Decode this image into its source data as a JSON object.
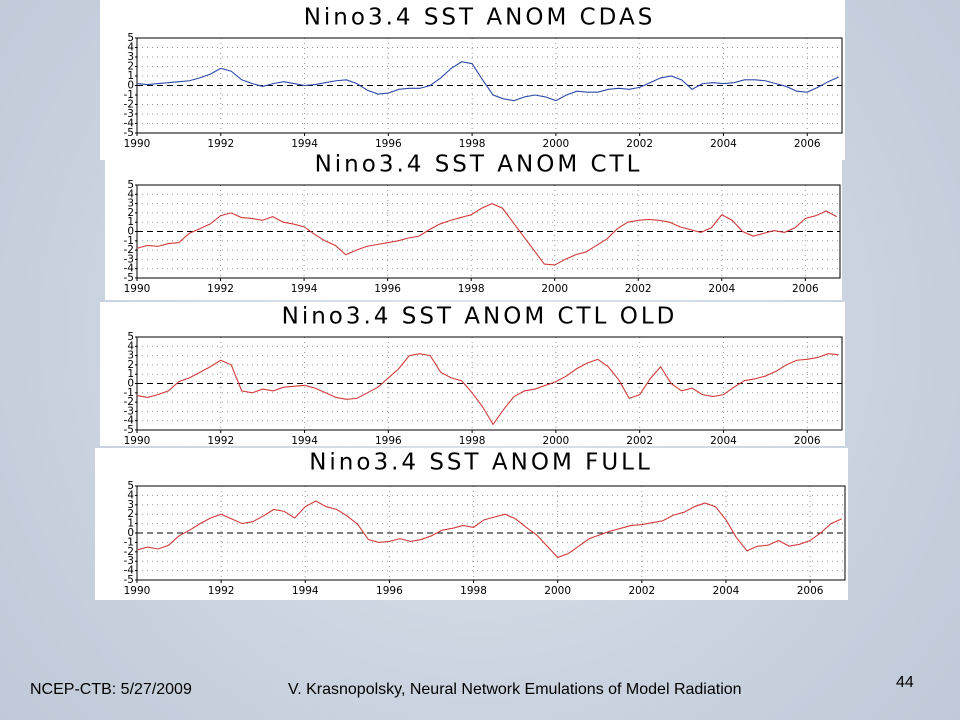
{
  "chart_data": [
    {
      "type": "line",
      "title": "Nino3.4 SST ANOM CDAS",
      "color": "#2b4aa8",
      "x": [
        1990,
        1990.25,
        1990.5,
        1990.75,
        1991,
        1991.25,
        1991.5,
        1991.75,
        1992,
        1992.25,
        1992.5,
        1992.75,
        1993,
        1993.25,
        1993.5,
        1993.75,
        1994,
        1994.25,
        1994.5,
        1994.75,
        1995,
        1995.25,
        1995.5,
        1995.75,
        1996,
        1996.25,
        1996.5,
        1996.75,
        1997,
        1997.25,
        1997.5,
        1997.75,
        1998,
        1998.25,
        1998.5,
        1998.75,
        1999,
        1999.25,
        1999.5,
        1999.75,
        2000,
        2000.25,
        2000.5,
        2000.75,
        2001,
        2001.25,
        2001.5,
        2001.75,
        2002,
        2002.25,
        2002.5,
        2002.75,
        2003,
        2003.25,
        2003.5,
        2003.75,
        2004,
        2004.25,
        2004.5,
        2004.75,
        2005,
        2005.25,
        2005.5,
        2005.75,
        2006,
        2006.25,
        2006.5,
        2006.75
      ],
      "values": [
        0.2,
        0.1,
        0.2,
        0.3,
        0.4,
        0.5,
        0.8,
        1.2,
        1.8,
        1.5,
        0.6,
        0.2,
        -0.1,
        0.2,
        0.4,
        0.2,
        0.0,
        0.1,
        0.3,
        0.5,
        0.6,
        0.2,
        -0.5,
        -0.9,
        -0.8,
        -0.4,
        -0.3,
        -0.3,
        0.0,
        0.8,
        1.8,
        2.5,
        2.3,
        0.6,
        -1.0,
        -1.4,
        -1.6,
        -1.2,
        -1.0,
        -1.2,
        -1.6,
        -1.0,
        -0.6,
        -0.7,
        -0.7,
        -0.4,
        -0.3,
        -0.4,
        -0.2,
        0.3,
        0.8,
        1.0,
        0.6,
        -0.4,
        0.2,
        0.3,
        0.2,
        0.3,
        0.6,
        0.6,
        0.5,
        0.2,
        -0.1,
        -0.6,
        -0.7,
        -0.2,
        0.4,
        0.9
      ],
      "xlim": [
        1990,
        2006.83
      ],
      "ylim": [
        -5,
        5
      ],
      "xticks": [
        1990,
        1992,
        1994,
        1996,
        1998,
        2000,
        2002,
        2004,
        2006
      ],
      "yticks": [
        -5,
        -4,
        -3,
        -2,
        -1,
        0,
        1,
        2,
        3,
        4,
        5
      ],
      "grid": true
    },
    {
      "type": "line",
      "title": "Nino3.4 SST ANOM CTL",
      "color": "#d23a3a",
      "x": [
        1990,
        1990.25,
        1990.5,
        1990.75,
        1991,
        1991.25,
        1991.5,
        1991.75,
        1992,
        1992.25,
        1992.5,
        1992.75,
        1993,
        1993.25,
        1993.5,
        1993.75,
        1994,
        1994.25,
        1994.5,
        1994.75,
        1995,
        1995.25,
        1995.5,
        1995.75,
        1996,
        1996.25,
        1996.5,
        1996.75,
        1997,
        1997.25,
        1997.5,
        1997.75,
        1998,
        1998.25,
        1998.5,
        1998.75,
        1999,
        1999.25,
        1999.5,
        1999.75,
        2000,
        2000.25,
        2000.5,
        2000.75,
        2001,
        2001.25,
        2001.5,
        2001.75,
        2002,
        2002.25,
        2002.5,
        2002.75,
        2003,
        2003.25,
        2003.5,
        2003.75,
        2004,
        2004.25,
        2004.5,
        2004.75,
        2005,
        2005.25,
        2005.5,
        2005.75,
        2006,
        2006.25,
        2006.5,
        2006.75
      ],
      "values": [
        -1.8,
        -1.5,
        -1.6,
        -1.3,
        -1.2,
        -0.2,
        0.3,
        0.8,
        1.7,
        2.0,
        1.5,
        1.4,
        1.2,
        1.6,
        1.0,
        0.8,
        0.5,
        -0.3,
        -1.0,
        -1.5,
        -2.5,
        -2.0,
        -1.6,
        -1.4,
        -1.2,
        -1.0,
        -0.7,
        -0.5,
        0.2,
        0.8,
        1.2,
        1.5,
        1.8,
        2.5,
        3.0,
        2.5,
        1.0,
        -0.5,
        -2.0,
        -3.5,
        -3.6,
        -3.0,
        -2.5,
        -2.2,
        -1.5,
        -0.8,
        0.3,
        1.0,
        1.2,
        1.3,
        1.2,
        1.0,
        0.5,
        0.2,
        -0.1,
        0.4,
        1.8,
        1.2,
        0.0,
        -0.5,
        -0.2,
        0.1,
        -0.1,
        0.4,
        1.4,
        1.7,
        2.2,
        1.6
      ],
      "xlim": [
        1990,
        2006.83
      ],
      "ylim": [
        -5,
        5
      ],
      "xticks": [
        1990,
        1992,
        1994,
        1996,
        1998,
        2000,
        2002,
        2004,
        2006
      ],
      "yticks": [
        -5,
        -4,
        -3,
        -2,
        -1,
        0,
        1,
        2,
        3,
        4,
        5
      ],
      "grid": true
    },
    {
      "type": "line",
      "title": "Nino3.4 SST ANOM CTL OLD",
      "color": "#d23a3a",
      "x": [
        1990,
        1990.25,
        1990.5,
        1990.75,
        1991,
        1991.25,
        1991.5,
        1991.75,
        1992,
        1992.25,
        1992.5,
        1992.75,
        1993,
        1993.25,
        1993.5,
        1993.75,
        1994,
        1994.25,
        1994.5,
        1994.75,
        1995,
        1995.25,
        1995.5,
        1995.75,
        1996,
        1996.25,
        1996.5,
        1996.75,
        1997,
        1997.25,
        1997.5,
        1997.75,
        1998,
        1998.25,
        1998.5,
        1998.75,
        1999,
        1999.25,
        1999.5,
        1999.75,
        2000,
        2000.25,
        2000.5,
        2000.75,
        2001,
        2001.25,
        2001.5,
        2001.75,
        2002,
        2002.25,
        2002.5,
        2002.75,
        2003,
        2003.25,
        2003.5,
        2003.75,
        2004,
        2004.25,
        2004.5,
        2004.75,
        2005,
        2005.25,
        2005.5,
        2005.75,
        2006,
        2006.25,
        2006.5,
        2006.75
      ],
      "values": [
        -1.3,
        -1.5,
        -1.2,
        -0.8,
        0.2,
        0.6,
        1.2,
        1.8,
        2.5,
        2.0,
        -0.8,
        -1.0,
        -0.6,
        -0.8,
        -0.4,
        -0.3,
        -0.2,
        -0.5,
        -1.0,
        -1.5,
        -1.7,
        -1.6,
        -1.0,
        -0.4,
        0.6,
        1.6,
        3.0,
        3.2,
        3.0,
        1.2,
        0.6,
        0.3,
        -1.0,
        -2.5,
        -4.4,
        -2.8,
        -1.4,
        -0.8,
        -0.6,
        -0.2,
        0.2,
        0.8,
        1.6,
        2.2,
        2.6,
        1.8,
        0.4,
        -1.6,
        -1.2,
        0.5,
        1.8,
        0.0,
        -0.8,
        -0.5,
        -1.2,
        -1.4,
        -1.2,
        -0.4,
        0.3,
        0.5,
        0.8,
        1.3,
        2.0,
        2.5,
        2.6,
        2.8,
        3.2,
        3.1
      ],
      "xlim": [
        1990,
        2006.83
      ],
      "ylim": [
        -5,
        5
      ],
      "xticks": [
        1990,
        1992,
        1994,
        1996,
        1998,
        2000,
        2002,
        2004,
        2006
      ],
      "yticks": [
        -5,
        -4,
        -3,
        -2,
        -1,
        0,
        1,
        2,
        3,
        4,
        5
      ],
      "grid": true
    },
    {
      "type": "line",
      "title": "Nino3.4 SST ANOM FULL",
      "color": "#d23a3a",
      "x": [
        1990,
        1990.25,
        1990.5,
        1990.75,
        1991,
        1991.25,
        1991.5,
        1991.75,
        1992,
        1992.25,
        1992.5,
        1992.75,
        1993,
        1993.25,
        1993.5,
        1993.75,
        1994,
        1994.25,
        1994.5,
        1994.75,
        1995,
        1995.25,
        1995.5,
        1995.75,
        1996,
        1996.25,
        1996.5,
        1996.75,
        1997,
        1997.25,
        1997.5,
        1997.75,
        1998,
        1998.25,
        1998.5,
        1998.75,
        1999,
        1999.25,
        1999.5,
        1999.75,
        2000,
        2000.25,
        2000.5,
        2000.75,
        2001,
        2001.25,
        2001.5,
        2001.75,
        2002,
        2002.25,
        2002.5,
        2002.75,
        2003,
        2003.25,
        2003.5,
        2003.75,
        2004,
        2004.25,
        2004.5,
        2004.75,
        2005,
        2005.25,
        2005.5,
        2005.75,
        2006,
        2006.25,
        2006.5,
        2006.75
      ],
      "values": [
        -1.8,
        -1.5,
        -1.7,
        -1.3,
        -0.3,
        0.3,
        1.0,
        1.6,
        2.0,
        1.5,
        1.0,
        1.2,
        1.8,
        2.5,
        2.3,
        1.6,
        2.8,
        3.4,
        2.8,
        2.5,
        1.8,
        0.9,
        -0.7,
        -1.0,
        -0.9,
        -0.6,
        -0.9,
        -0.7,
        -0.3,
        0.3,
        0.5,
        0.8,
        0.6,
        1.4,
        1.7,
        2.0,
        1.5,
        0.6,
        -0.2,
        -1.4,
        -2.6,
        -2.2,
        -1.4,
        -0.6,
        -0.2,
        0.2,
        0.5,
        0.8,
        0.9,
        1.1,
        1.3,
        1.9,
        2.2,
        2.8,
        3.2,
        2.8,
        1.4,
        -0.5,
        -1.9,
        -1.4,
        -1.3,
        -0.8,
        -1.4,
        -1.2,
        -0.8,
        0.0,
        1.0,
        1.5
      ],
      "xlim": [
        1990,
        2006.83
      ],
      "ylim": [
        -5,
        5
      ],
      "xticks": [
        1990,
        1992,
        1994,
        1996,
        1998,
        2000,
        2002,
        2004,
        2006
      ],
      "yticks": [
        -5,
        -4,
        -3,
        -2,
        -1,
        0,
        1,
        2,
        3,
        4,
        5
      ],
      "grid": true
    }
  ],
  "footer": {
    "left": "NCEP-CTB: 5/27/2009",
    "center": "V. Krasnopolsky, Neural Network Emulations of Model Radiation",
    "page": "44"
  }
}
